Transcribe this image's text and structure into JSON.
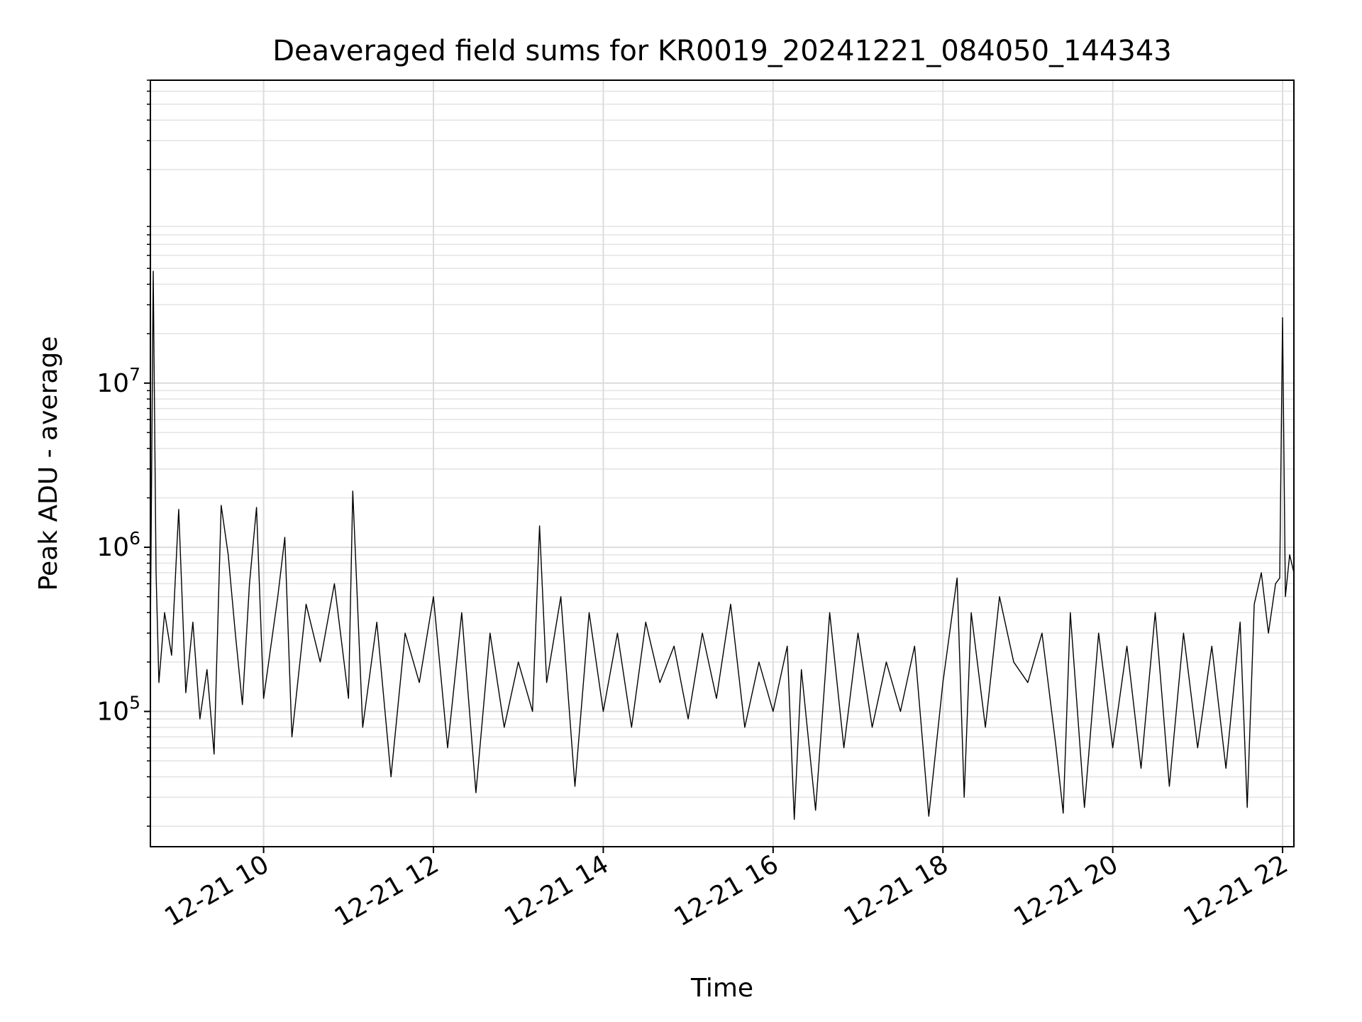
{
  "chart_data": {
    "type": "line",
    "title": "Deaveraged field sums for KR0019_20241221_084050_144343",
    "xlabel": "Time",
    "ylabel": "Peak ADU - average",
    "yscale": "log",
    "xlim": [
      "2024-12-21 08:40",
      "2024-12-21 22:08"
    ],
    "ylim": [
      15000,
      700000000
    ],
    "grid": true,
    "x_ticks": [
      {
        "t": "2024-12-21 10:00",
        "label": "12-21 10"
      },
      {
        "t": "2024-12-21 12:00",
        "label": "12-21 12"
      },
      {
        "t": "2024-12-21 14:00",
        "label": "12-21 14"
      },
      {
        "t": "2024-12-21 16:00",
        "label": "12-21 16"
      },
      {
        "t": "2024-12-21 18:00",
        "label": "12-21 18"
      },
      {
        "t": "2024-12-21 20:00",
        "label": "12-21 20"
      },
      {
        "t": "2024-12-21 22:00",
        "label": "12-21 22"
      }
    ],
    "y_ticks": [
      {
        "v": 100000,
        "base": "10",
        "exp": "5"
      },
      {
        "v": 1000000,
        "base": "10",
        "exp": "6"
      },
      {
        "v": 10000000,
        "base": "10",
        "exp": "7"
      }
    ],
    "series": [
      {
        "color": "#000000",
        "x": [
          "2024-12-21 08:40",
          "2024-12-21 08:42",
          "2024-12-21 08:44",
          "2024-12-21 08:46",
          "2024-12-21 08:50",
          "2024-12-21 08:55",
          "2024-12-21 09:00",
          "2024-12-21 09:05",
          "2024-12-21 09:10",
          "2024-12-21 09:15",
          "2024-12-21 09:20",
          "2024-12-21 09:25",
          "2024-12-21 09:30",
          "2024-12-21 09:35",
          "2024-12-21 09:40",
          "2024-12-21 09:45",
          "2024-12-21 09:50",
          "2024-12-21 09:55",
          "2024-12-21 10:00",
          "2024-12-21 10:10",
          "2024-12-21 10:15",
          "2024-12-21 10:20",
          "2024-12-21 10:30",
          "2024-12-21 10:40",
          "2024-12-21 10:50",
          "2024-12-21 11:00",
          "2024-12-21 11:03",
          "2024-12-21 11:10",
          "2024-12-21 11:20",
          "2024-12-21 11:30",
          "2024-12-21 11:40",
          "2024-12-21 11:50",
          "2024-12-21 12:00",
          "2024-12-21 12:10",
          "2024-12-21 12:20",
          "2024-12-21 12:30",
          "2024-12-21 12:40",
          "2024-12-21 12:50",
          "2024-12-21 13:00",
          "2024-12-21 13:10",
          "2024-12-21 13:15",
          "2024-12-21 13:20",
          "2024-12-21 13:30",
          "2024-12-21 13:40",
          "2024-12-21 13:50",
          "2024-12-21 14:00",
          "2024-12-21 14:10",
          "2024-12-21 14:20",
          "2024-12-21 14:30",
          "2024-12-21 14:40",
          "2024-12-21 14:50",
          "2024-12-21 15:00",
          "2024-12-21 15:10",
          "2024-12-21 15:20",
          "2024-12-21 15:30",
          "2024-12-21 15:40",
          "2024-12-21 15:50",
          "2024-12-21 16:00",
          "2024-12-21 16:10",
          "2024-12-21 16:15",
          "2024-12-21 16:20",
          "2024-12-21 16:30",
          "2024-12-21 16:40",
          "2024-12-21 16:50",
          "2024-12-21 17:00",
          "2024-12-21 17:10",
          "2024-12-21 17:20",
          "2024-12-21 17:30",
          "2024-12-21 17:40",
          "2024-12-21 17:50",
          "2024-12-21 18:00",
          "2024-12-21 18:10",
          "2024-12-21 18:15",
          "2024-12-21 18:20",
          "2024-12-21 18:30",
          "2024-12-21 18:40",
          "2024-12-21 18:50",
          "2024-12-21 19:00",
          "2024-12-21 19:10",
          "2024-12-21 19:20",
          "2024-12-21 19:25",
          "2024-12-21 19:30",
          "2024-12-21 19:40",
          "2024-12-21 19:50",
          "2024-12-21 20:00",
          "2024-12-21 20:10",
          "2024-12-21 20:20",
          "2024-12-21 20:30",
          "2024-12-21 20:40",
          "2024-12-21 20:50",
          "2024-12-21 21:00",
          "2024-12-21 21:10",
          "2024-12-21 21:20",
          "2024-12-21 21:30",
          "2024-12-21 21:35",
          "2024-12-21 21:40",
          "2024-12-21 21:45",
          "2024-12-21 21:50",
          "2024-12-21 21:55",
          "2024-12-21 21:58",
          "2024-12-21 22:00",
          "2024-12-21 22:02",
          "2024-12-21 22:05",
          "2024-12-21 22:08"
        ],
        "y": [
          300000,
          48000000,
          700000,
          150000,
          400000,
          220000,
          1700000,
          130000,
          350000,
          90000,
          180000,
          55000,
          1800000,
          900000,
          300000,
          110000,
          600000,
          1750000,
          120000,
          500000,
          1150000,
          70000,
          450000,
          200000,
          600000,
          120000,
          2200000,
          80000,
          350000,
          40000,
          300000,
          150000,
          500000,
          60000,
          400000,
          32000,
          300000,
          80000,
          200000,
          100000,
          1350000,
          150000,
          500000,
          35000,
          400000,
          100000,
          300000,
          80000,
          350000,
          150000,
          250000,
          90000,
          300000,
          120000,
          450000,
          80000,
          200000,
          100000,
          250000,
          22000,
          180000,
          25000,
          400000,
          60000,
          300000,
          80000,
          200000,
          100000,
          250000,
          23000,
          150000,
          650000,
          30000,
          400000,
          80000,
          500000,
          200000,
          150000,
          300000,
          60000,
          24000,
          400000,
          26000,
          300000,
          60000,
          250000,
          45000,
          400000,
          35000,
          300000,
          60000,
          250000,
          45000,
          350000,
          26000,
          450000,
          700000,
          300000,
          600000,
          650000,
          25000000,
          500000,
          900000,
          700000
        ]
      }
    ]
  }
}
